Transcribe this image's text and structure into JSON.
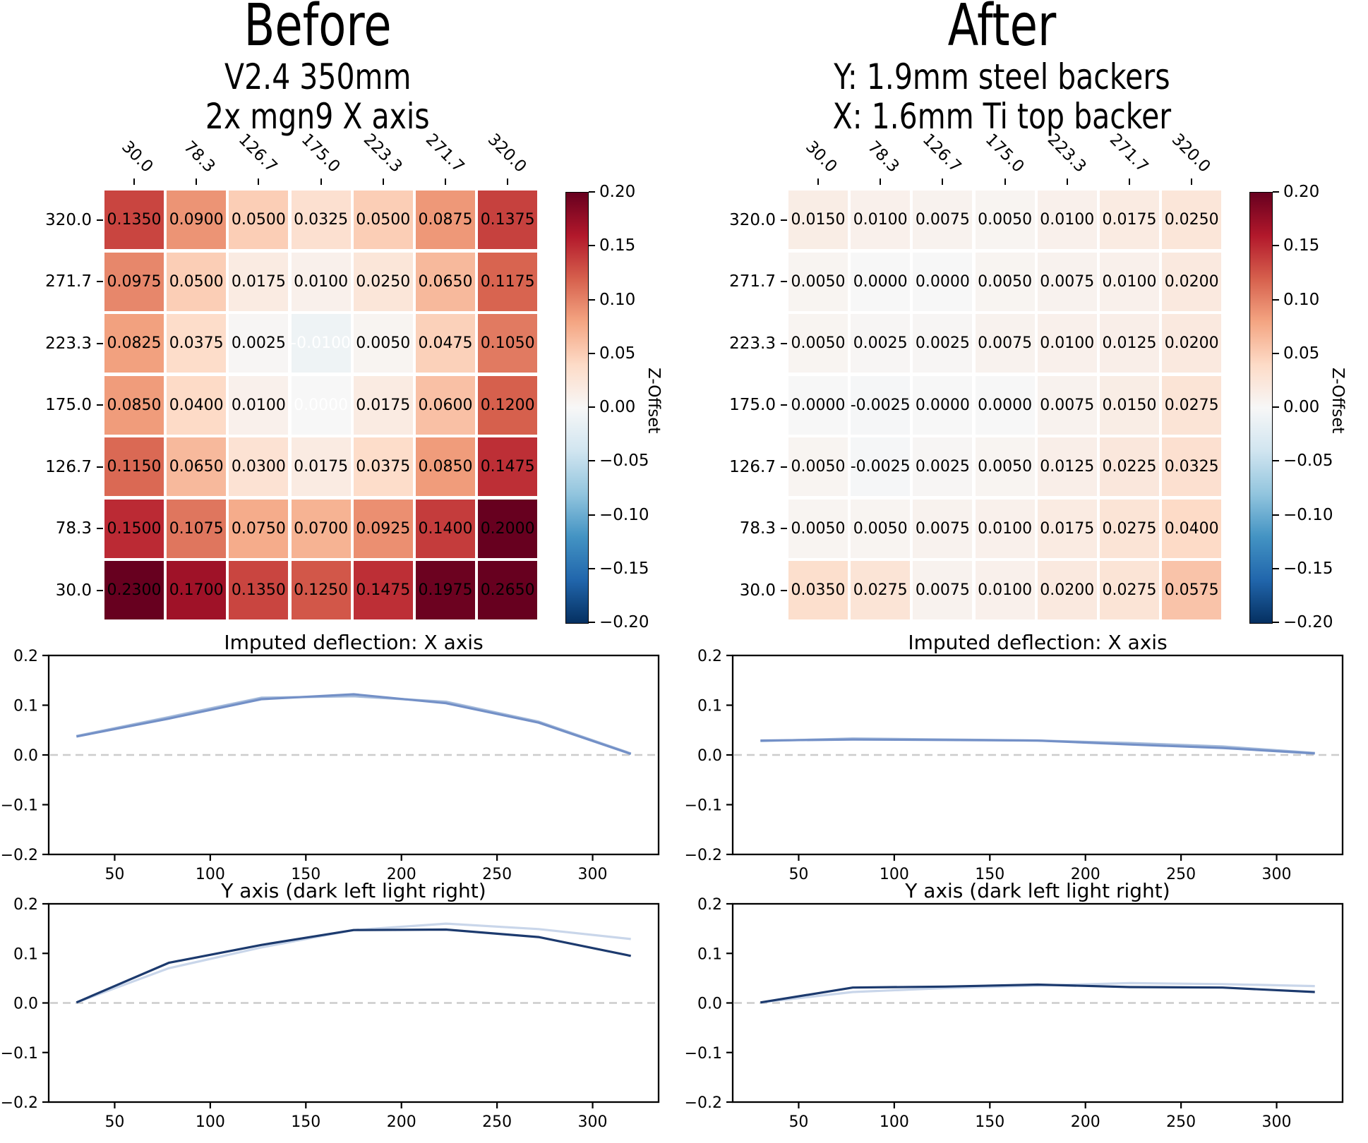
{
  "chart_data": [
    {
      "type": "heatmap",
      "panel": "before",
      "title": "Before",
      "subtitles": [
        "V2.4 350mm",
        "2x mgn9 X axis"
      ],
      "x_ticks": [
        "30.0",
        "78.3",
        "126.7",
        "175.0",
        "223.3",
        "271.7",
        "320.0"
      ],
      "y_ticks": [
        "320.0",
        "271.7",
        "223.3",
        "175.0",
        "126.7",
        "78.3",
        "30.0"
      ],
      "values": [
        [
          0.135,
          0.09,
          0.05,
          0.0325,
          0.05,
          0.0875,
          0.1375
        ],
        [
          0.0975,
          0.05,
          0.0175,
          0.01,
          0.025,
          0.065,
          0.1175
        ],
        [
          0.0825,
          0.0375,
          0.0025,
          -0.01,
          0.005,
          0.0475,
          0.105
        ],
        [
          0.085,
          0.04,
          0.01,
          0.0,
          0.0175,
          0.06,
          0.12
        ],
        [
          0.115,
          0.065,
          0.03,
          0.0175,
          0.0375,
          0.085,
          0.1475
        ],
        [
          0.15,
          0.1075,
          0.075,
          0.07,
          0.0925,
          0.14,
          0.2
        ],
        [
          0.23,
          0.17,
          0.135,
          0.125,
          0.1475,
          0.1975,
          0.265
        ]
      ],
      "white_annotations": [
        [
          2,
          3
        ],
        [
          3,
          3
        ]
      ],
      "colormap": "RdBu_r",
      "colorbar": {
        "label": "Z-Offset",
        "vmin": -0.2,
        "vmax": 0.2,
        "ticks": [
          "0.20",
          "0.15",
          "0.10",
          "0.05",
          "0.00",
          "−0.05",
          "−0.10",
          "−0.15",
          "−0.20"
        ]
      }
    },
    {
      "type": "line",
      "panel": "before",
      "title": "Imputed deflection: X axis",
      "xlabel": "Y axis (dark left light right)",
      "x": [
        30,
        78.3,
        126.7,
        175.0,
        223.3,
        271.7,
        320.0
      ],
      "xticks": [
        "50",
        "100",
        "150",
        "200",
        "250",
        "300"
      ],
      "yticks": [
        "0.2",
        "0.1",
        "0.0",
        "−0.1",
        "−0.2"
      ],
      "ylim": [
        -0.2,
        0.2
      ],
      "zero_line_dashed": true,
      "series": [
        {
          "name": "light-overlay",
          "color": "#a4bada",
          "values": [
            0.038,
            0.076,
            0.115,
            0.118,
            0.107,
            0.067,
            0.003
          ]
        },
        {
          "name": "imputed-x-deflection",
          "color": "#7390c7",
          "values": [
            0.037,
            0.073,
            0.112,
            0.122,
            0.104,
            0.065,
            0.002
          ]
        }
      ]
    },
    {
      "type": "line",
      "panel": "before",
      "title": "",
      "x": [
        30,
        78.3,
        126.7,
        175.0,
        223.3,
        271.7,
        320.0
      ],
      "xticks": [
        "50",
        "100",
        "150",
        "200",
        "250",
        "300"
      ],
      "yticks": [
        "0.2",
        "0.1",
        "0.0",
        "−0.1",
        "−0.2"
      ],
      "ylim": [
        -0.2,
        0.2
      ],
      "zero_line_dashed": true,
      "series": [
        {
          "name": "y-light-right",
          "color": "#c9d6ea",
          "values": [
            0.001,
            0.07,
            0.112,
            0.147,
            0.16,
            0.149,
            0.129
          ]
        },
        {
          "name": "y-dark-left",
          "color": "#1c3a6e",
          "values": [
            0.001,
            0.081,
            0.117,
            0.147,
            0.148,
            0.133,
            0.095
          ]
        }
      ]
    },
    {
      "type": "heatmap",
      "panel": "after",
      "title": "After",
      "subtitles": [
        "Y: 1.9mm steel backers",
        "X: 1.6mm Ti top backer"
      ],
      "x_ticks": [
        "30.0",
        "78.3",
        "126.7",
        "175.0",
        "223.3",
        "271.7",
        "320.0"
      ],
      "y_ticks": [
        "320.0",
        "271.7",
        "223.3",
        "175.0",
        "126.7",
        "78.3",
        "30.0"
      ],
      "values": [
        [
          0.015,
          0.01,
          0.0075,
          0.005,
          0.01,
          0.0175,
          0.025
        ],
        [
          0.005,
          0.0,
          0.0,
          0.005,
          0.0075,
          0.01,
          0.02
        ],
        [
          0.005,
          0.0025,
          0.0025,
          0.0075,
          0.01,
          0.0125,
          0.02
        ],
        [
          0.0,
          -0.0025,
          0.0,
          0.0,
          0.0075,
          0.015,
          0.0275
        ],
        [
          0.005,
          -0.0025,
          0.0025,
          0.005,
          0.0125,
          0.0225,
          0.0325
        ],
        [
          0.005,
          0.005,
          0.0075,
          0.01,
          0.0175,
          0.0275,
          0.04
        ],
        [
          0.035,
          0.0275,
          0.0075,
          0.01,
          0.02,
          0.0275,
          0.0575
        ]
      ],
      "white_annotations": [],
      "colormap": "RdBu_r",
      "colorbar": {
        "label": "Z-Offset",
        "vmin": -0.2,
        "vmax": 0.2,
        "ticks": [
          "0.20",
          "0.15",
          "0.10",
          "0.05",
          "0.00",
          "−0.05",
          "−0.10",
          "−0.15",
          "−0.20"
        ]
      }
    },
    {
      "type": "line",
      "panel": "after",
      "title": "Imputed deflection: X axis",
      "xlabel": "Y axis (dark left light right)",
      "x": [
        30,
        78.3,
        126.7,
        175.0,
        223.3,
        271.7,
        320.0
      ],
      "xticks": [
        "50",
        "100",
        "150",
        "200",
        "250",
        "300"
      ],
      "yticks": [
        "0.2",
        "0.1",
        "0.0",
        "−0.1",
        "−0.2"
      ],
      "ylim": [
        -0.2,
        0.2
      ],
      "zero_line_dashed": true,
      "series": [
        {
          "name": "light-overlay",
          "color": "#a4bada",
          "values": [
            0.028,
            0.033,
            0.031,
            0.029,
            0.024,
            0.017,
            0.004
          ]
        },
        {
          "name": "imputed-x-deflection",
          "color": "#7390c7",
          "values": [
            0.029,
            0.031,
            0.03,
            0.029,
            0.021,
            0.014,
            0.003
          ]
        }
      ]
    },
    {
      "type": "line",
      "panel": "after",
      "title": "",
      "x": [
        30,
        78.3,
        126.7,
        175.0,
        223.3,
        271.7,
        320.0
      ],
      "xticks": [
        "50",
        "100",
        "150",
        "200",
        "250",
        "300"
      ],
      "yticks": [
        "0.2",
        "0.1",
        "0.0",
        "−0.1",
        "−0.2"
      ],
      "ylim": [
        -0.2,
        0.2
      ],
      "zero_line_dashed": true,
      "series": [
        {
          "name": "y-light-right",
          "color": "#c9d6ea",
          "values": [
            0.001,
            0.022,
            0.03,
            0.035,
            0.04,
            0.038,
            0.034
          ]
        },
        {
          "name": "y-dark-left",
          "color": "#1c3a6e",
          "values": [
            0.001,
            0.031,
            0.033,
            0.037,
            0.032,
            0.031,
            0.022
          ]
        }
      ]
    }
  ]
}
